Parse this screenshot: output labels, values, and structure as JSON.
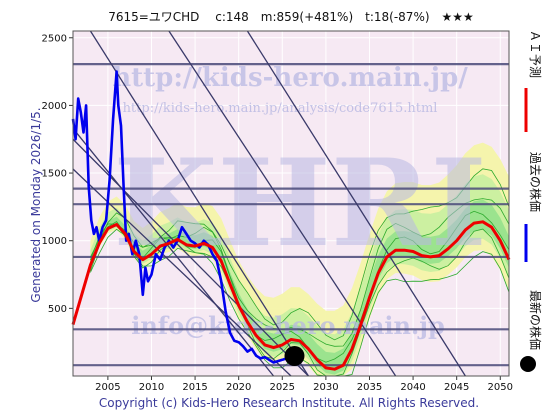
{
  "chart_data": {
    "type": "line",
    "title": "7615=ユワCHD　 c:148　m:859(+481%)　t:18(-87%)　★★★",
    "side_label": "Generated on Monday 2026/1/5.",
    "copyright": "Copyright (c) Kids-Hero Research Institute. All Rights Reserved.",
    "watermarks": {
      "url1": "http://kids-hero.main.jp/",
      "url2": "http://kids-hero.main.jp/analysis/code7615.html",
      "brand": "KHRI",
      "email": "info@kids-hero.main.jp"
    },
    "xlim": [
      2001,
      2051
    ],
    "ylim": [
      0,
      2550
    ],
    "x_ticks": [
      2005,
      2010,
      2015,
      2020,
      2025,
      2030,
      2035,
      2040,
      2045,
      2050
    ],
    "y_ticks": [
      500,
      1000,
      1500,
      2000,
      2500
    ],
    "legend": [
      {
        "label": "ＡＩ予測",
        "color": "#ee0000"
      },
      {
        "label": "過去の株価",
        "color": "#0000ee"
      },
      {
        "label": "最新の株価",
        "color": "#000000"
      }
    ],
    "horizontal_levels": [
      80,
      345,
      880,
      1270,
      1385,
      2305
    ],
    "diagonal_lines": [
      {
        "x1": 2003,
        "y1": 2550,
        "x2": 2028,
        "y2": 0
      },
      {
        "x1": 2001,
        "y1": 1830,
        "x2": 2024,
        "y2": 0
      },
      {
        "x1": 2001,
        "y1": 1750,
        "x2": 2028,
        "y2": 0
      },
      {
        "x1": 2001,
        "y1": 1530,
        "x2": 2026,
        "y2": 0
      },
      {
        "x1": 2012,
        "y1": 2550,
        "x2": 2038,
        "y2": 0
      },
      {
        "x1": 2021,
        "y1": 2550,
        "x2": 2046,
        "y2": 0
      }
    ],
    "series": [
      {
        "name": "過去の株価",
        "color": "#0000ee",
        "x": [
          2001,
          2001.3,
          2001.6,
          2001.9,
          2002.2,
          2002.5,
          2002.8,
          2003.1,
          2003.4,
          2003.7,
          2004.0,
          2004.4,
          2004.8,
          2005.2,
          2005.6,
          2006.0,
          2006.2,
          2006.5,
          2006.8,
          2007.1,
          2007.4,
          2007.8,
          2008.2,
          2008.6,
          2009.0,
          2009.3,
          2009.6,
          2010.0,
          2010.5,
          2011.0,
          2011.5,
          2012.0,
          2012.5,
          2013.0,
          2013.5,
          2014.0,
          2014.5,
          2015.0,
          2015.5,
          2016.0,
          2016.5,
          2017.0,
          2017.5,
          2018.0,
          2018.5,
          2019.0,
          2019.5,
          2020.0,
          2020.5,
          2021.0,
          2021.5,
          2022.0,
          2022.5,
          2023.0,
          2023.5,
          2024.0,
          2024.5,
          2025.0,
          2025.5,
          2026.0
        ],
        "y": [
          1900,
          1750,
          2050,
          1950,
          1800,
          2000,
          1400,
          1150,
          1050,
          1100,
          1000,
          1100,
          1150,
          1450,
          1900,
          2250,
          2000,
          1850,
          1400,
          1000,
          1050,
          900,
          1000,
          900,
          600,
          800,
          700,
          750,
          900,
          860,
          950,
          1000,
          950,
          1000,
          1100,
          1050,
          1000,
          980,
          950,
          1000,
          970,
          900,
          850,
          700,
          480,
          320,
          260,
          250,
          220,
          180,
          200,
          150,
          130,
          140,
          120,
          100,
          110,
          120,
          130,
          148
        ]
      },
      {
        "name": "ＡＩ予測",
        "color": "#ee0000",
        "x": [
          2001,
          2002,
          2003,
          2004,
          2005,
          2006,
          2007,
          2008,
          2009,
          2010,
          2011,
          2012,
          2013,
          2014,
          2015,
          2016,
          2017,
          2018,
          2019,
          2020,
          2021,
          2022,
          2023,
          2024,
          2025,
          2026,
          2027,
          2028,
          2029,
          2030,
          2031,
          2032,
          2033,
          2034,
          2035,
          2036,
          2037,
          2038,
          2039,
          2040,
          2041,
          2042,
          2043,
          2044,
          2045,
          2046,
          2047,
          2048,
          2049,
          2050,
          2051
        ],
        "y": [
          380,
          600,
          820,
          980,
          1090,
          1120,
          1050,
          920,
          860,
          900,
          960,
          980,
          1010,
          970,
          960,
          980,
          950,
          850,
          680,
          520,
          400,
          300,
          230,
          210,
          230,
          270,
          260,
          200,
          120,
          60,
          50,
          80,
          200,
          380,
          580,
          760,
          880,
          930,
          930,
          920,
          890,
          880,
          890,
          940,
          1000,
          1080,
          1130,
          1140,
          1100,
          1000,
          860
        ]
      }
    ],
    "latest_point": {
      "x": 2026.4,
      "y": 148
    }
  }
}
